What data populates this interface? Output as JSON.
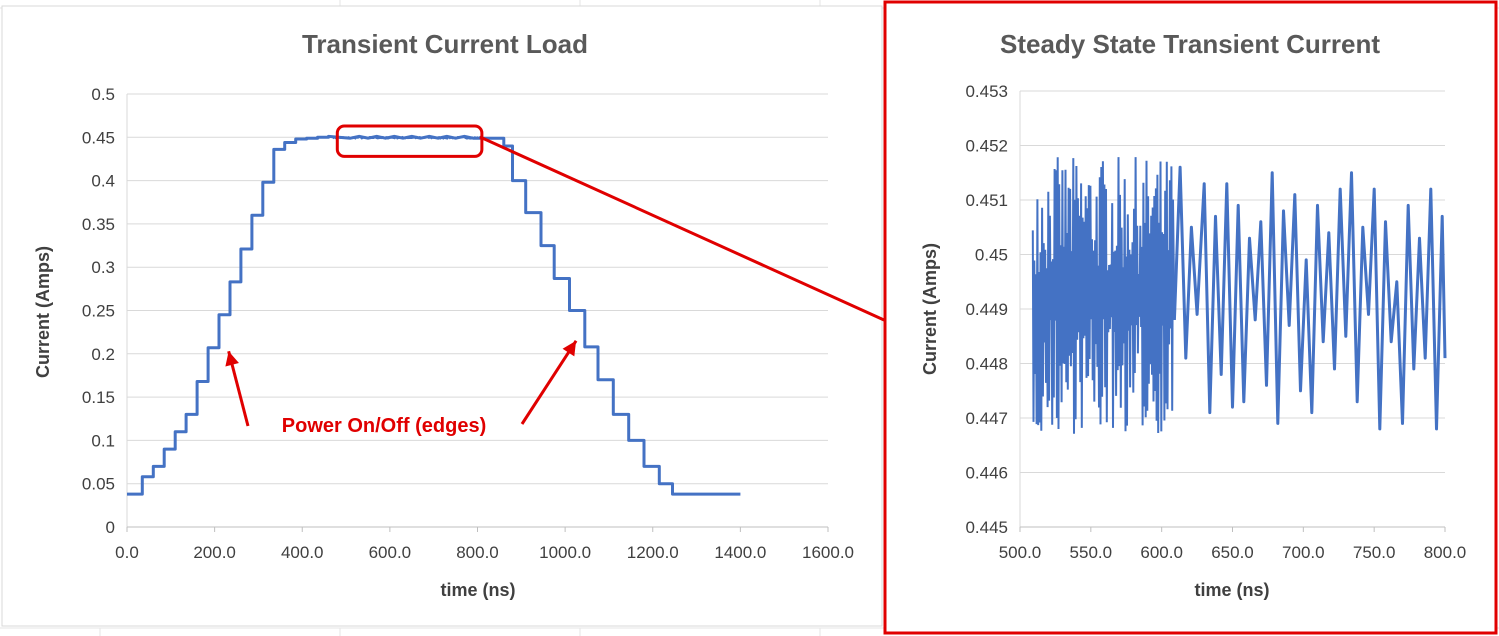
{
  "chart_data": [
    {
      "type": "line",
      "title": "Transient Current Load",
      "xlabel": "time (ns)",
      "ylabel": "Current (Amps)",
      "xlim": [
        0,
        1600
      ],
      "ylim": [
        0,
        0.5
      ],
      "x_ticks": [
        "0.0",
        "200.0",
        "400.0",
        "600.0",
        "800.0",
        "1000.0",
        "1200.0",
        "1400.0",
        "1600.0"
      ],
      "y_ticks": [
        "0",
        "0.05",
        "0.1",
        "0.15",
        "0.2",
        "0.25",
        "0.3",
        "0.35",
        "0.4",
        "0.45",
        "0.5"
      ],
      "grid": "horizontal",
      "color": "#4472c4",
      "series": [
        {
          "x": [
            0,
            35,
            35,
            60,
            60,
            85,
            85,
            110,
            110,
            135,
            135,
            160,
            160,
            185,
            185,
            210,
            210,
            235,
            235,
            260,
            260,
            285,
            285,
            310,
            310,
            335,
            335,
            360,
            360,
            385,
            385,
            410,
            410,
            435,
            435,
            460,
            460,
            510,
            530,
            550,
            570,
            590,
            610,
            630,
            650,
            670,
            690,
            710,
            730,
            750,
            770,
            790,
            810,
            860,
            860,
            880,
            880,
            910,
            910,
            945,
            945,
            975,
            975,
            1010,
            1010,
            1045,
            1045,
            1075,
            1075,
            1110,
            1110,
            1145,
            1145,
            1180,
            1180,
            1215,
            1215,
            1245,
            1245,
            1400
          ],
          "y": [
            0.038,
            0.038,
            0.058,
            0.058,
            0.07,
            0.07,
            0.09,
            0.09,
            0.11,
            0.11,
            0.13,
            0.13,
            0.168,
            0.168,
            0.207,
            0.207,
            0.245,
            0.245,
            0.283,
            0.283,
            0.321,
            0.321,
            0.36,
            0.36,
            0.398,
            0.398,
            0.436,
            0.436,
            0.444,
            0.444,
            0.448,
            0.448,
            0.449,
            0.449,
            0.45,
            0.45,
            0.451,
            0.449,
            0.451,
            0.449,
            0.451,
            0.449,
            0.451,
            0.449,
            0.451,
            0.449,
            0.451,
            0.449,
            0.451,
            0.449,
            0.451,
            0.449,
            0.449,
            0.449,
            0.44,
            0.44,
            0.4,
            0.4,
            0.363,
            0.363,
            0.325,
            0.325,
            0.287,
            0.287,
            0.25,
            0.25,
            0.208,
            0.208,
            0.17,
            0.17,
            0.13,
            0.13,
            0.1,
            0.1,
            0.07,
            0.07,
            0.05,
            0.05,
            0.038,
            0.038
          ]
        }
      ],
      "annotations": [
        {
          "text": "Power On/Off (edges)",
          "color": "#e00000",
          "arrows_to": [
            [
              232,
              0.203
            ],
            [
              1025,
              0.215
            ]
          ]
        }
      ],
      "highlight_box": {
        "x": [
          480,
          810
        ],
        "y": [
          0.428,
          0.463
        ],
        "color": "#e00000"
      }
    },
    {
      "type": "line",
      "title": "Steady State Transient Current",
      "xlabel": "time (ns)",
      "ylabel": "Current (Amps)",
      "xlim": [
        500,
        800
      ],
      "ylim": [
        0.445,
        0.453
      ],
      "x_ticks": [
        "500.0",
        "550.0",
        "600.0",
        "650.0",
        "700.0",
        "750.0",
        "800.0"
      ],
      "y_ticks": [
        "0.445",
        "0.446",
        "0.447",
        "0.448",
        "0.449",
        "0.45",
        "0.451",
        "0.452",
        "0.453"
      ],
      "grid": "horizontal",
      "color": "#4472c4",
      "dense_noise": {
        "x_range": [
          509,
          608
        ],
        "y_min": 0.4467,
        "y_max": 0.4518
      },
      "series": [
        {
          "x": [
            609,
            613,
            617,
            621,
            625,
            630,
            634,
            638,
            642,
            646,
            650,
            654,
            658,
            662,
            666,
            670,
            674,
            678,
            682,
            686,
            690,
            694,
            698,
            702,
            706,
            710,
            714,
            718,
            722,
            726,
            730,
            734,
            738,
            742,
            746,
            750,
            754,
            758,
            762,
            766,
            770,
            774,
            778,
            782,
            786,
            790,
            794,
            798,
            800
          ],
          "y": [
            0.4488,
            0.4516,
            0.4481,
            0.4505,
            0.4489,
            0.4513,
            0.4471,
            0.4507,
            0.4478,
            0.4513,
            0.4472,
            0.4509,
            0.4473,
            0.4503,
            0.4488,
            0.4506,
            0.4476,
            0.4515,
            0.4469,
            0.4508,
            0.4487,
            0.4511,
            0.4475,
            0.4499,
            0.4471,
            0.4509,
            0.4484,
            0.4504,
            0.4479,
            0.4512,
            0.4485,
            0.4515,
            0.4473,
            0.4505,
            0.4489,
            0.4512,
            0.4468,
            0.4506,
            0.4484,
            0.4495,
            0.4469,
            0.4509,
            0.4479,
            0.4503,
            0.4481,
            0.4512,
            0.4468,
            0.4507,
            0.4481
          ]
        }
      ],
      "border_color": "#e00000"
    }
  ]
}
